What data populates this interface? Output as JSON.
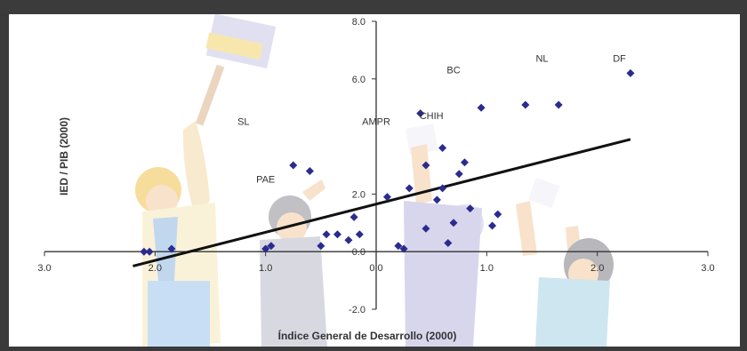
{
  "chart_data": {
    "type": "scatter",
    "xlabel": "Índice General de Desarrollo (2000)",
    "ylabel": "IED / PIB (2000)",
    "xlim": [
      -3.0,
      3.0
    ],
    "ylim": [
      -2.0,
      8.0
    ],
    "x_ticks": [
      "3.0",
      "2.0",
      "1.0",
      "0.0",
      "1.0",
      "2.0",
      "3.0"
    ],
    "y_ticks": [
      "8.0",
      "6.0",
      "2.0",
      "0.0",
      "-2.0"
    ],
    "grid": false,
    "legend": "none",
    "marker_color": "#2b2b8f",
    "trendline_color": "#111111",
    "series": [
      {
        "points": [
          {
            "x": -2.1,
            "y": 0.0
          },
          {
            "x": -2.05,
            "y": 0.0
          },
          {
            "x": -1.85,
            "y": 0.1
          },
          {
            "x": -1.0,
            "y": 0.1
          },
          {
            "x": -0.95,
            "y": 0.2
          },
          {
            "x": -0.75,
            "y": 3.0
          },
          {
            "x": -0.6,
            "y": 2.8
          },
          {
            "x": -0.5,
            "y": 0.2
          },
          {
            "x": -0.45,
            "y": 0.6
          },
          {
            "x": -0.35,
            "y": 0.6
          },
          {
            "x": -0.25,
            "y": 0.4
          },
          {
            "x": -0.2,
            "y": 1.2
          },
          {
            "x": -0.15,
            "y": 0.6
          },
          {
            "x": 0.1,
            "y": 1.9
          },
          {
            "x": 0.2,
            "y": 0.2
          },
          {
            "x": 0.25,
            "y": 0.1
          },
          {
            "x": 0.3,
            "y": 2.2
          },
          {
            "x": 0.4,
            "y": 4.8
          },
          {
            "x": 0.45,
            "y": 3.0
          },
          {
            "x": 0.45,
            "y": 0.8
          },
          {
            "x": 0.55,
            "y": 1.8
          },
          {
            "x": 0.6,
            "y": 2.2
          },
          {
            "x": 0.6,
            "y": 3.6
          },
          {
            "x": 0.65,
            "y": 0.3
          },
          {
            "x": 0.7,
            "y": 1.0
          },
          {
            "x": 0.75,
            "y": 2.7
          },
          {
            "x": 0.8,
            "y": 3.1
          },
          {
            "x": 0.85,
            "y": 1.5
          },
          {
            "x": 0.95,
            "y": 5.0
          },
          {
            "x": 1.05,
            "y": 0.9
          },
          {
            "x": 1.1,
            "y": 1.3
          },
          {
            "x": 1.35,
            "y": 5.1
          },
          {
            "x": 1.65,
            "y": 5.1
          },
          {
            "x": 2.3,
            "y": 6.2
          }
        ]
      }
    ],
    "trendline": {
      "x": [
        -2.2,
        2.3
      ],
      "y": [
        -0.5,
        3.9
      ]
    },
    "annotations": [
      {
        "text": "SL",
        "x": -1.2,
        "y": 4.4
      },
      {
        "text": "PAE",
        "x": -1.0,
        "y": 2.4
      },
      {
        "text": "AMPR",
        "x": 0.0,
        "y": 4.4
      },
      {
        "text": "CHIH",
        "x": 0.5,
        "y": 4.6
      },
      {
        "text": "BC",
        "x": 0.7,
        "y": 6.2
      },
      {
        "text": "NL",
        "x": 1.5,
        "y": 6.6
      },
      {
        "text": "DF",
        "x": 2.2,
        "y": 6.6
      }
    ]
  }
}
